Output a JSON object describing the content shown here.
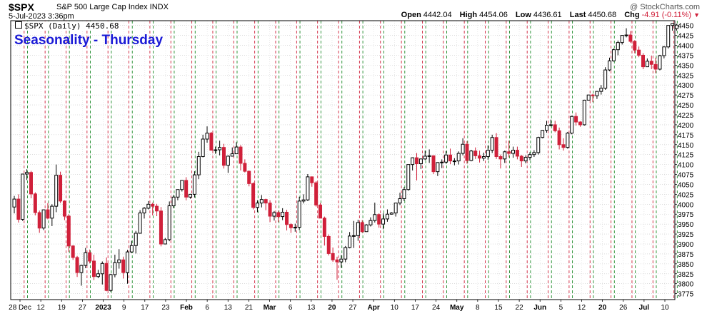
{
  "header": {
    "symbol": "$SPX",
    "description": "S&P 500 Large Cap Index  INDX",
    "date": "5-Jul-2023 3:36pm",
    "watermark": "@ StockCharts.com",
    "open_label": "Open",
    "open": "4442.04",
    "high_label": "High",
    "high": "4454.06",
    "low_label": "Low",
    "low": "4436.61",
    "last_label": "Last",
    "last": "4450.68",
    "chg_label": "Chg",
    "chg": "-4.91 (-0.11%)",
    "legend": "$SPX (Daily) 4450.68",
    "annotation": "Seasonality - Thursday"
  },
  "colors": {
    "up": "#000000",
    "down": "#d0203a",
    "red_line": "#d0203a",
    "green_line": "#1e8c2a",
    "grid": "#c8c8c8"
  },
  "chart_data": {
    "type": "candlestick",
    "title": "Seasonality - Thursday",
    "ylim": [
      3760,
      4462
    ],
    "y_ticks": [
      3775,
      3800,
      3825,
      3850,
      3875,
      3900,
      3925,
      3950,
      3975,
      4000,
      4025,
      4050,
      4075,
      4100,
      4125,
      4150,
      4175,
      4200,
      4225,
      4250,
      4275,
      4300,
      4325,
      4350,
      4375,
      4400,
      4425,
      4450
    ],
    "x_labels": [
      "28 Dec",
      "12",
      "19",
      "27",
      "2023",
      "9",
      "17",
      "23",
      "Feb",
      "6",
      "13",
      "21",
      "Mar",
      "6",
      "13",
      "20",
      "27",
      "Apr",
      "10",
      "17",
      "24",
      "May",
      "8",
      "15",
      "22",
      "Jun",
      "5",
      "12",
      "20",
      "26",
      "Jul",
      "10"
    ],
    "ohlc": [
      [
        3993,
        4021,
        3977,
        4013
      ],
      [
        4013,
        4025,
        3954,
        3962
      ],
      [
        3962,
        4076,
        3958,
        4076
      ],
      [
        4076,
        4088,
        4061,
        4080
      ],
      [
        4080,
        4084,
        4015,
        4026
      ],
      [
        4026,
        4030,
        3972,
        3979
      ],
      [
        3979,
        3984,
        3928,
        3940
      ],
      [
        3940,
        3987,
        3935,
        3986
      ],
      [
        3986,
        4003,
        3962,
        3965
      ],
      [
        3965,
        4000,
        3945,
        3995
      ],
      [
        3995,
        4100,
        3980,
        4073
      ],
      [
        4073,
        4082,
        4003,
        4008
      ],
      [
        4008,
        4010,
        3960,
        3970
      ],
      [
        3970,
        3975,
        3880,
        3895
      ],
      [
        3895,
        3897,
        3860,
        3866
      ],
      [
        3866,
        3870,
        3817,
        3828
      ],
      [
        3828,
        3848,
        3795,
        3846
      ],
      [
        3846,
        3890,
        3839,
        3878
      ],
      [
        3878,
        3886,
        3851,
        3857
      ],
      [
        3857,
        3873,
        3809,
        3818
      ],
      [
        3818,
        3835,
        3814,
        3825
      ],
      [
        3825,
        3856,
        3798,
        3851
      ],
      [
        3851,
        3866,
        3781,
        3783
      ],
      [
        3783,
        3825,
        3780,
        3823
      ],
      [
        3823,
        3873,
        3816,
        3853
      ],
      [
        3853,
        3887,
        3838,
        3860
      ],
      [
        3860,
        3868,
        3813,
        3828
      ],
      [
        3828,
        3885,
        3800,
        3880
      ],
      [
        3880,
        3908,
        3877,
        3896
      ],
      [
        3896,
        3933,
        3876,
        3927
      ],
      [
        3927,
        3985,
        3926,
        3978
      ],
      [
        3978,
        3993,
        3964,
        3990
      ],
      [
        3990,
        4008,
        3987,
        4000
      ],
      [
        4000,
        4004,
        3972,
        3995
      ],
      [
        3995,
        4001,
        3970,
        3983
      ],
      [
        3983,
        3993,
        3894,
        3900
      ],
      [
        3900,
        3915,
        3899,
        3911
      ],
      [
        3911,
        4007,
        3907,
        3996
      ],
      [
        3996,
        4023,
        3990,
        4018
      ],
      [
        4018,
        4037,
        4010,
        4037
      ],
      [
        4037,
        4060,
        4032,
        4060
      ],
      [
        4060,
        4068,
        4010,
        4018
      ],
      [
        4018,
        4026,
        4014,
        4025
      ],
      [
        4025,
        4083,
        4017,
        4074
      ],
      [
        4074,
        4132,
        4063,
        4120
      ],
      [
        4120,
        4175,
        4118,
        4164
      ],
      [
        4164,
        4196,
        4155,
        4179
      ],
      [
        4179,
        4182,
        4135,
        4136
      ],
      [
        4136,
        4145,
        4127,
        4137
      ],
      [
        4137,
        4160,
        4123,
        4143
      ],
      [
        4143,
        4152,
        4090,
        4098
      ],
      [
        4098,
        4123,
        4079,
        4121
      ],
      [
        4121,
        4143,
        4120,
        4127
      ],
      [
        4127,
        4156,
        4129,
        4144
      ],
      [
        4144,
        4149,
        4085,
        4103
      ],
      [
        4103,
        4113,
        4080,
        4083
      ],
      [
        4083,
        4085,
        4045,
        4052
      ],
      [
        4052,
        4055,
        3987,
        3992
      ],
      [
        3992,
        4010,
        3980,
        4003
      ],
      [
        4003,
        4023,
        3992,
        4012
      ],
      [
        4012,
        4014,
        3985,
        4003
      ],
      [
        4003,
        4010,
        3955,
        3970
      ],
      [
        3970,
        3983,
        3959,
        3979
      ],
      [
        3979,
        3984,
        3955,
        3969
      ],
      [
        3969,
        3990,
        3960,
        3980
      ],
      [
        3980,
        3986,
        3934,
        3949
      ],
      [
        3949,
        3952,
        3928,
        3941
      ],
      [
        3941,
        3951,
        3931,
        3942
      ],
      [
        3942,
        4019,
        3935,
        4008
      ],
      [
        4008,
        4025,
        4002,
        4011
      ],
      [
        4011,
        4076,
        4008,
        4069
      ],
      [
        4069,
        4070,
        4044,
        4054
      ],
      [
        4054,
        4058,
        3994,
        3998
      ],
      [
        3998,
        4003,
        3965,
        3965
      ],
      [
        3965,
        3969,
        3896,
        3919
      ],
      [
        3919,
        3924,
        3871,
        3876
      ],
      [
        3876,
        3891,
        3855,
        3860
      ],
      [
        3860,
        3868,
        3810,
        3855
      ],
      [
        3855,
        3872,
        3840,
        3862
      ],
      [
        3862,
        3895,
        3854,
        3891
      ],
      [
        3891,
        3930,
        3889,
        3920
      ],
      [
        3920,
        3958,
        3890,
        3921
      ],
      [
        3921,
        3961,
        3908,
        3954
      ],
      [
        3954,
        3960,
        3928,
        3931
      ],
      [
        3931,
        3950,
        3931,
        3948
      ],
      [
        3948,
        3967,
        3944,
        3959
      ],
      [
        3959,
        4004,
        3954,
        3974
      ],
      [
        3974,
        3977,
        3941,
        3950
      ],
      [
        3950,
        3977,
        3937,
        3963
      ],
      [
        3963,
        3987,
        3956,
        3975
      ],
      [
        3975,
        3980,
        3974,
        3978
      ],
      [
        3978,
        4003,
        3969,
        4003
      ],
      [
        4003,
        4029,
        3998,
        4014
      ],
      [
        4014,
        4043,
        4008,
        4037
      ],
      [
        4037,
        4100,
        4034,
        4100
      ],
      [
        4100,
        4118,
        4085,
        4117
      ],
      [
        4117,
        4129,
        4060,
        4102
      ],
      [
        4102,
        4115,
        4089,
        4114
      ],
      [
        4114,
        4135,
        4111,
        4121
      ],
      [
        4121,
        4138,
        4104,
        4122
      ],
      [
        4122,
        4123,
        4076,
        4082
      ],
      [
        4082,
        4106,
        4071,
        4105
      ],
      [
        4105,
        4113,
        4091,
        4106
      ],
      [
        4106,
        4134,
        4102,
        4124
      ],
      [
        4124,
        4140,
        4101,
        4109
      ],
      [
        4109,
        4116,
        4098,
        4109
      ],
      [
        4109,
        4133,
        4100,
        4128
      ],
      [
        4128,
        4166,
        4123,
        4151
      ],
      [
        4151,
        4159,
        4102,
        4110
      ],
      [
        4110,
        4137,
        4108,
        4134
      ],
      [
        4134,
        4143,
        4114,
        4122
      ],
      [
        4122,
        4135,
        4105,
        4116
      ],
      [
        4116,
        4130,
        4109,
        4120
      ],
      [
        4120,
        4148,
        4112,
        4136
      ],
      [
        4136,
        4175,
        4129,
        4168
      ],
      [
        4168,
        4179,
        4114,
        4120
      ],
      [
        4120,
        4125,
        4090,
        4114
      ],
      [
        4114,
        4135,
        4104,
        4132
      ],
      [
        4132,
        4160,
        4118,
        4128
      ],
      [
        4128,
        4145,
        4117,
        4136
      ],
      [
        4136,
        4145,
        4113,
        4121
      ],
      [
        4121,
        4124,
        4094,
        4109
      ],
      [
        4109,
        4123,
        4103,
        4118
      ],
      [
        4118,
        4131,
        4111,
        4125
      ],
      [
        4125,
        4136,
        4119,
        4130
      ],
      [
        4130,
        4170,
        4125,
        4168
      ],
      [
        4168,
        4187,
        4166,
        4186
      ],
      [
        4186,
        4210,
        4180,
        4199
      ],
      [
        4199,
        4213,
        4196,
        4200
      ],
      [
        4200,
        4210,
        4181,
        4185
      ],
      [
        4185,
        4193,
        4138,
        4150
      ],
      [
        4150,
        4166,
        4135,
        4143
      ],
      [
        4143,
        4182,
        4140,
        4179
      ],
      [
        4179,
        4223,
        4176,
        4221
      ],
      [
        4221,
        4231,
        4198,
        4207
      ],
      [
        4207,
        4209,
        4195,
        4200
      ],
      [
        4200,
        4263,
        4198,
        4262
      ],
      [
        4262,
        4274,
        4264,
        4275
      ],
      [
        4275,
        4278,
        4257,
        4273
      ],
      [
        4273,
        4285,
        4265,
        4284
      ],
      [
        4284,
        4300,
        4276,
        4292
      ],
      [
        4292,
        4345,
        4288,
        4338
      ],
      [
        4338,
        4369,
        4335,
        4361
      ],
      [
        4361,
        4392,
        4359,
        4389
      ],
      [
        4389,
        4412,
        4375,
        4407
      ],
      [
        4407,
        4426,
        4402,
        4425
      ],
      [
        4425,
        4443,
        4420,
        4426
      ],
      [
        4426,
        4436,
        4406,
        4410
      ],
      [
        4410,
        4413,
        4380,
        4388
      ],
      [
        4388,
        4397,
        4370,
        4375
      ],
      [
        4375,
        4380,
        4340,
        4346
      ],
      [
        4346,
        4367,
        4346,
        4360
      ],
      [
        4360,
        4374,
        4340,
        4352
      ],
      [
        4352,
        4369,
        4330,
        4340
      ],
      [
        4340,
        4376,
        4337,
        4374
      ],
      [
        4374,
        4398,
        4367,
        4396
      ],
      [
        4396,
        4450,
        4392,
        4450
      ],
      [
        4450,
        4456,
        4437,
        4455
      ],
      [
        4442,
        4454,
        4437,
        4451
      ]
    ]
  }
}
